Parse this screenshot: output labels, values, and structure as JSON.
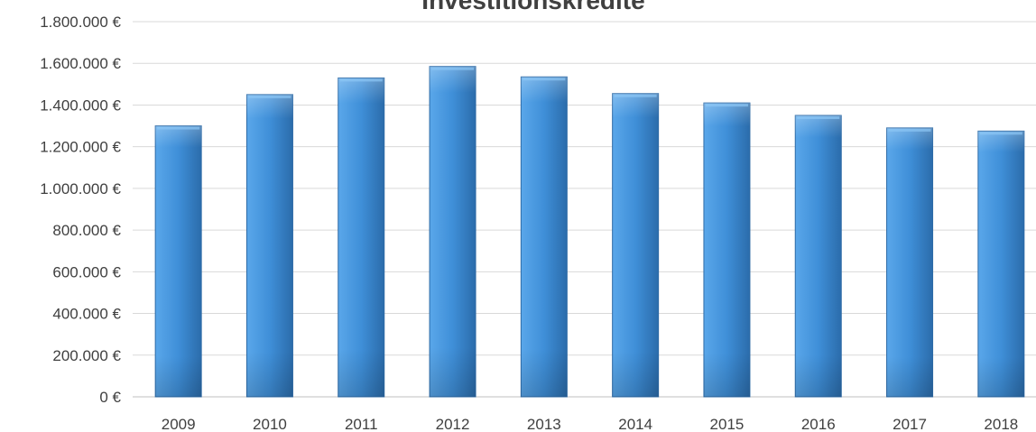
{
  "chart_data": {
    "type": "bar",
    "title": "Investitionskredite",
    "categories": [
      "2009",
      "2010",
      "2011",
      "2012",
      "2013",
      "2014",
      "2015",
      "2016",
      "2017",
      "2018"
    ],
    "values": [
      1300000,
      1450000,
      1530000,
      1585000,
      1535000,
      1455000,
      1410000,
      1350000,
      1290000,
      1275000
    ],
    "ylim": [
      0,
      1800000
    ],
    "yticks": [
      0,
      200000,
      400000,
      600000,
      800000,
      1000000,
      1200000,
      1400000,
      1600000,
      1800000
    ],
    "ytick_labels": [
      "0 €",
      "200.000 €",
      "400.000 €",
      "600.000 €",
      "800.000 €",
      "1.000.000 €",
      "1.200.000 €",
      "1.400.000 €",
      "1.600.000 €",
      "1.800.000 €"
    ],
    "xlabel": "",
    "ylabel": "",
    "grid": true,
    "legend": "none",
    "colors": {
      "bar_light": "#5aa7ea",
      "bar_mid": "#3f8fd8",
      "bar_dark": "#2b6cab",
      "bar_edge": "#2d6aa6",
      "grid": "#d9d9d9",
      "text": "#404040"
    }
  }
}
